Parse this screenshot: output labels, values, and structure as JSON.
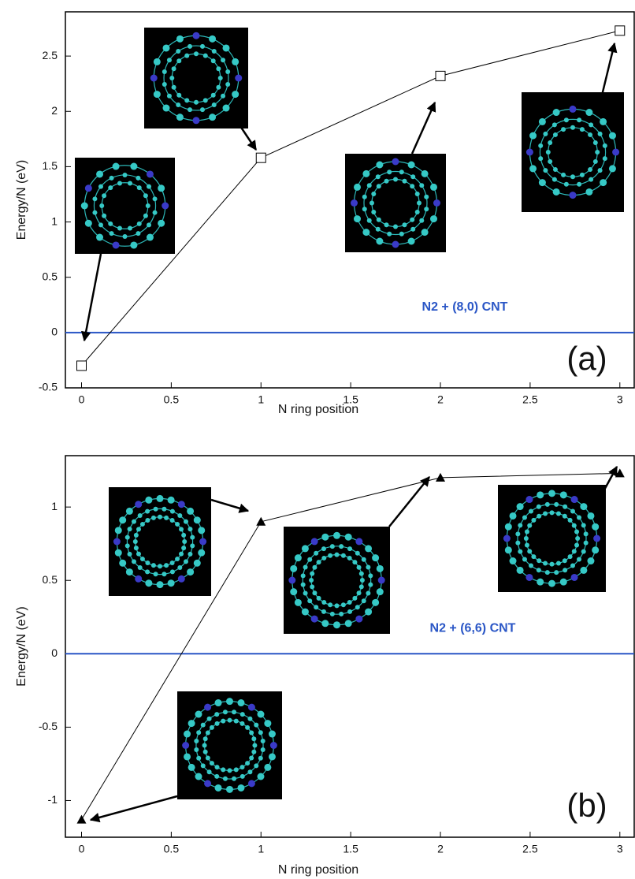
{
  "chart_data": [
    {
      "type": "line",
      "x_label": "N ring position",
      "y_label": "Energy/N (eV)",
      "panel_label": "(a)",
      "x": [
        0,
        1,
        2,
        3
      ],
      "series": [
        {
          "values": [
            -0.3,
            1.58,
            2.32,
            2.73
          ],
          "color": "#000000",
          "marker": "square-open"
        }
      ],
      "xlim": [
        -0.09,
        3.08
      ],
      "xticks": [
        0,
        0.5,
        1,
        1.5,
        2,
        2.5,
        3
      ],
      "ylim": [
        -0.5,
        2.9
      ],
      "yticks": [
        -0.5,
        0,
        0.5,
        1,
        1.5,
        2,
        2.5
      ],
      "reference_line": {
        "value": 0,
        "label": "N2 + (8,0) CNT",
        "color": "#2a56c6"
      }
    },
    {
      "type": "line",
      "x_label": "N ring position",
      "y_label": "Energy/N (eV)",
      "panel_label": "(b)",
      "x": [
        0,
        1,
        2,
        3
      ],
      "series": [
        {
          "values": [
            -1.13,
            0.9,
            1.2,
            1.23
          ],
          "color": "#000000",
          "marker": "triangle"
        }
      ],
      "xlim": [
        -0.09,
        3.08
      ],
      "xticks": [
        0,
        0.5,
        1,
        1.5,
        2,
        2.5,
        3
      ],
      "ylim": [
        -1.25,
        1.35
      ],
      "yticks": [
        -1,
        -0.5,
        0,
        0.5,
        1
      ],
      "reference_line": {
        "value": 0,
        "label": "N2 + (6,6) CNT",
        "color": "#2a56c6"
      }
    }
  ]
}
